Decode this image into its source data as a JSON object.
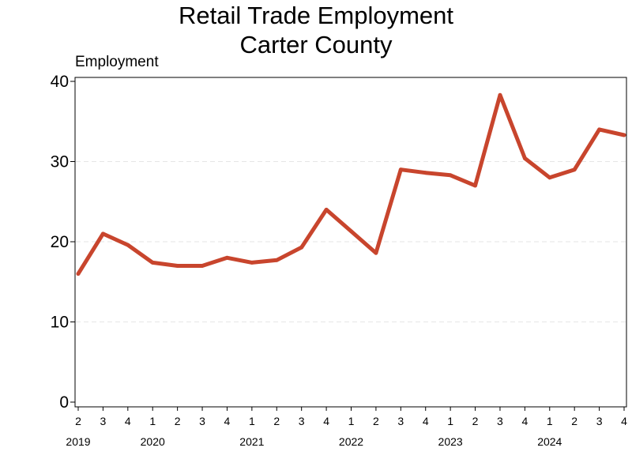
{
  "chart_data": {
    "type": "line",
    "title": "Retail Trade Employment",
    "subtitle": "Carter County",
    "ylabel": "Employment",
    "xlabel": "",
    "ylim": [
      0,
      40
    ],
    "yticks": [
      0,
      10,
      20,
      30,
      40
    ],
    "grid": true,
    "line_color": "#c8452d",
    "grid_color": "#e6e6e6",
    "x": [
      "2019 Q2",
      "2019 Q3",
      "2019 Q4",
      "2020 Q1",
      "2020 Q2",
      "2020 Q3",
      "2020 Q4",
      "2021 Q1",
      "2021 Q2",
      "2021 Q3",
      "2021 Q4",
      "2022 Q1",
      "2022 Q2",
      "2022 Q3",
      "2022 Q4",
      "2023 Q1",
      "2023 Q2",
      "2023 Q3",
      "2023 Q4",
      "2024 Q1",
      "2024 Q2",
      "2024 Q3",
      "2024 Q4"
    ],
    "quarter_labels": [
      "2",
      "3",
      "4",
      "1",
      "2",
      "3",
      "4",
      "1",
      "2",
      "3",
      "4",
      "1",
      "2",
      "3",
      "4",
      "1",
      "2",
      "3",
      "4",
      "1",
      "2",
      "3",
      "4"
    ],
    "year_labels": [
      {
        "label": "2019",
        "index": 0
      },
      {
        "label": "2020",
        "index": 3
      },
      {
        "label": "2021",
        "index": 7
      },
      {
        "label": "2022",
        "index": 11
      },
      {
        "label": "2023",
        "index": 15
      },
      {
        "label": "2024",
        "index": 19
      }
    ],
    "series": [
      {
        "values": [
          16,
          21,
          19.6,
          17.4,
          17,
          17,
          18,
          17.4,
          17.7,
          19.3,
          24,
          21.3,
          18.6,
          29,
          28.6,
          28.3,
          27,
          38.3,
          30.4,
          28,
          29,
          34,
          33.3
        ]
      }
    ]
  }
}
